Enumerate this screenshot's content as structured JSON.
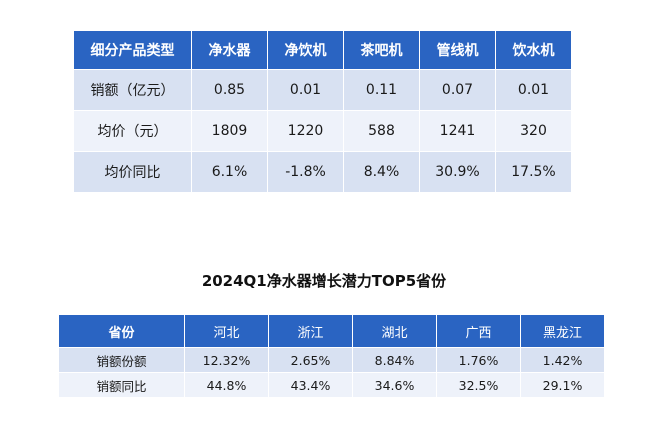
{
  "table1": {
    "headers": [
      "细分产品类型",
      "净水器",
      "净饮机",
      "茶吧机",
      "管线机",
      "饮水机"
    ],
    "rows": [
      [
        "销额（亿元）",
        "0.85",
        "0.01",
        "0.11",
        "0.07",
        "0.01"
      ],
      [
        "均价（元）",
        "1809",
        "1220",
        "588",
        "1241",
        "320"
      ],
      [
        "均价同比",
        "6.1%",
        "-1.8%",
        "8.4%",
        "30.9%",
        "17.5%"
      ]
    ]
  },
  "table2": {
    "title": "2024Q1净水器增长潜力TOP5省份",
    "headers": [
      "省份",
      "河北",
      "浙江",
      "湖北",
      "广西",
      "黑龙江"
    ],
    "rows": [
      [
        "销额份额",
        "12.32%",
        "2.65%",
        "8.84%",
        "1.76%",
        "1.42%"
      ],
      [
        "销额同比",
        "44.8%",
        "43.4%",
        "34.6%",
        "32.5%",
        "29.1%"
      ]
    ]
  }
}
